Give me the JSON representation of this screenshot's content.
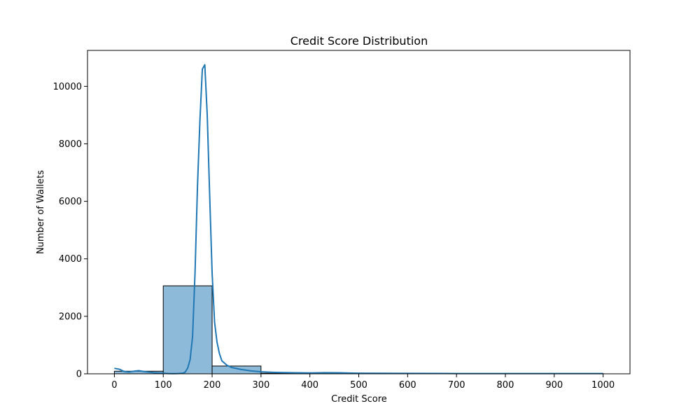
{
  "chart_data": {
    "type": "bar",
    "title": "Credit Score Distribution",
    "xlabel": "Credit Score",
    "ylabel": "Number of Wallets",
    "xlim": [
      -55,
      1055
    ],
    "ylim": [
      0,
      11250
    ],
    "x_ticks": [
      0,
      100,
      200,
      300,
      400,
      500,
      600,
      700,
      800,
      900,
      1000
    ],
    "y_ticks": [
      0,
      2000,
      4000,
      6000,
      8000,
      10000
    ],
    "grid": false,
    "bins": [
      {
        "start": 0,
        "end": 100,
        "value": 90
      },
      {
        "start": 100,
        "end": 200,
        "value": 3060
      },
      {
        "start": 200,
        "end": 300,
        "value": 270
      },
      {
        "start": 300,
        "end": 400,
        "value": 20
      },
      {
        "start": 400,
        "end": 500,
        "value": 25
      },
      {
        "start": 500,
        "end": 600,
        "value": 10
      },
      {
        "start": 600,
        "end": 700,
        "value": 8
      },
      {
        "start": 700,
        "end": 800,
        "value": 5
      },
      {
        "start": 800,
        "end": 900,
        "value": 3
      },
      {
        "start": 900,
        "end": 1000,
        "value": 8
      }
    ],
    "kde": {
      "x": [
        0,
        10,
        20,
        30,
        40,
        50,
        60,
        70,
        80,
        90,
        100,
        110,
        120,
        130,
        140,
        145,
        150,
        155,
        160,
        165,
        170,
        175,
        180,
        185,
        190,
        195,
        200,
        205,
        210,
        215,
        220,
        230,
        240,
        260,
        280,
        300,
        330,
        360,
        400,
        430,
        460,
        500,
        600,
        700,
        800,
        900,
        1000
      ],
      "y": [
        190,
        160,
        80,
        60,
        90,
        110,
        80,
        60,
        40,
        30,
        20,
        10,
        5,
        8,
        20,
        60,
        200,
        500,
        1300,
        3500,
        6500,
        8800,
        10600,
        10750,
        9000,
        6200,
        3500,
        1800,
        1100,
        700,
        450,
        300,
        220,
        150,
        100,
        70,
        50,
        40,
        30,
        40,
        35,
        20,
        15,
        10,
        10,
        8,
        8
      ]
    },
    "colors": {
      "bar_fill": "#8ebad9",
      "bar_edge": "#000000",
      "kde_line": "#1f77b4"
    }
  }
}
